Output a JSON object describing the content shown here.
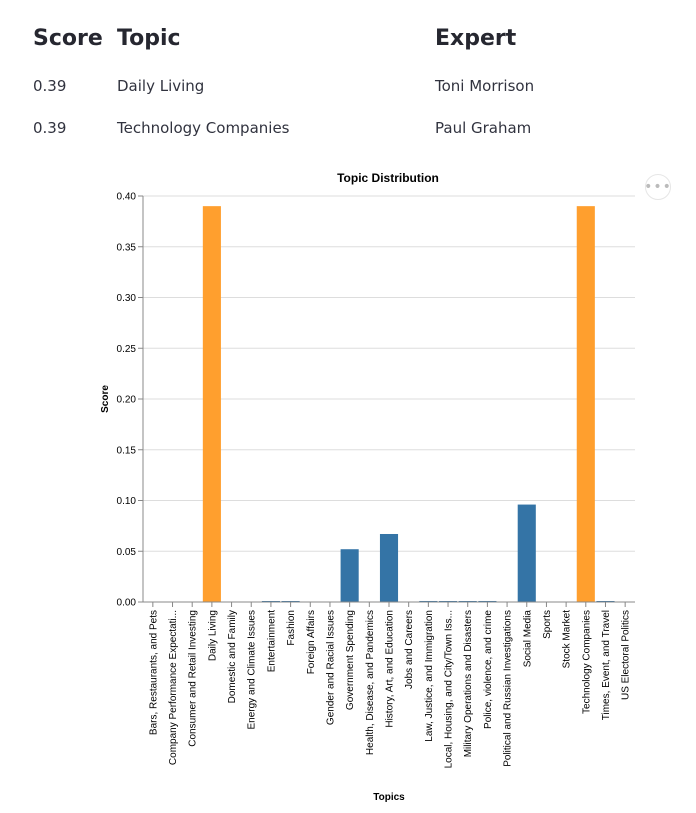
{
  "table": {
    "headers": [
      "Score",
      "Topic",
      "Expert"
    ],
    "rows": [
      [
        "0.39",
        "Daily Living",
        "Toni Morrison"
      ],
      [
        "0.39",
        "Technology Companies",
        "Paul Graham"
      ]
    ]
  },
  "chart_menu": {
    "icon": "more-horizontal-icon",
    "glyph": "•••"
  },
  "colors": {
    "highlight": "#ff9f2e",
    "base": "#3474a6",
    "grid": "#dddddd",
    "axis": "#888888"
  },
  "chart_data": {
    "type": "bar",
    "title": "Topic Distribution",
    "xlabel": "Topics",
    "ylabel": "Score",
    "ylim": [
      0,
      0.4
    ],
    "yticks": [
      "0.00",
      "0.05",
      "0.10",
      "0.15",
      "0.20",
      "0.25",
      "0.30",
      "0.35",
      "0.40"
    ],
    "grid": true,
    "categories": [
      "Bars, Restaurants, and Pets",
      "Company Performance Expectati...",
      "Consumer and Retail Investing",
      "Daily Living",
      "Domestic and Family",
      "Energy and Climate Issues",
      "Entertainment",
      "Fashion",
      "Foreign Affairs",
      "Gender and Racial Issues",
      "Government Spending",
      "Health, Disease, and Pandemics",
      "History, Art, and Education",
      "Jobs and Careers",
      "Law, Justice, and Immigration",
      "Local, Housing, and City/Town Iss...",
      "Military Operations and Disasters",
      "Police, violence, and crime",
      "Political and Russian Investigations",
      "Social Media",
      "Sports",
      "Stock Market",
      "Technology Companies",
      "Times, Event, and Travel",
      "US Electoral Politics"
    ],
    "values": [
      0.0,
      0.0,
      0.0,
      0.39,
      0.0,
      0.0,
      0.0005,
      0.0005,
      0.0,
      0.0,
      0.052,
      0.0,
      0.067,
      0.0,
      0.001,
      0.0005,
      0.0005,
      0.001,
      0.0,
      0.096,
      0.0,
      0.0,
      0.39,
      0.0005,
      0.0
    ],
    "highlighted": [
      "Daily Living",
      "Technology Companies"
    ]
  }
}
